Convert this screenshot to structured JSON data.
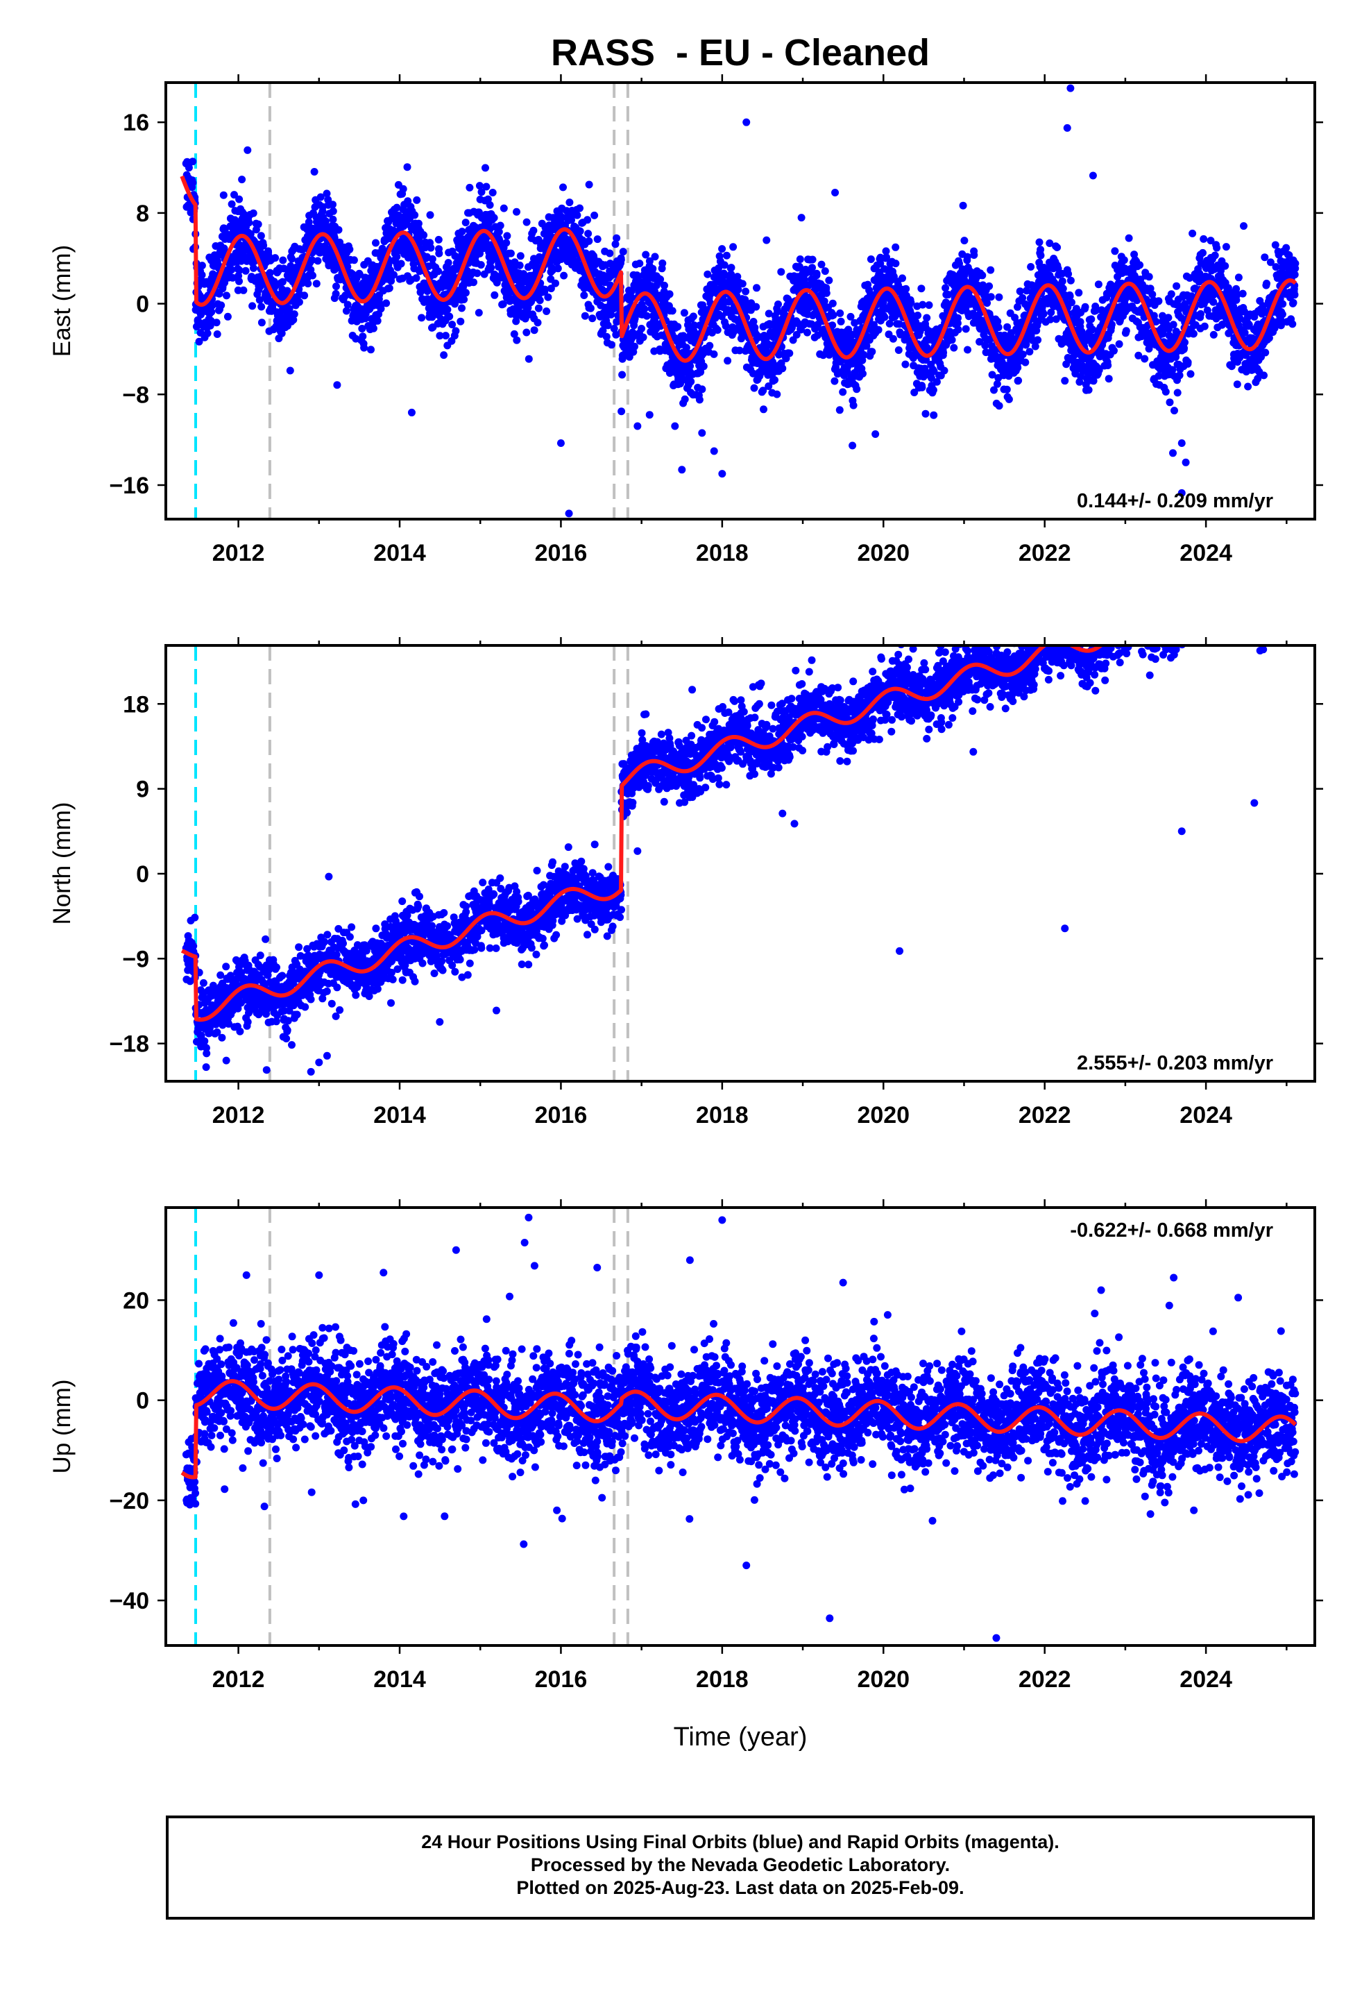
{
  "chart_data": {
    "title": "RASS  - EU - Cleaned",
    "type": "scatter",
    "xlabel": "Time (year)",
    "xlim": [
      2011.1,
      2025.35
    ],
    "xticks": [
      2012,
      2014,
      2016,
      2018,
      2020,
      2022,
      2024
    ],
    "colors": {
      "points": "#0000ff",
      "model": "#ff1a1a",
      "equipment_change": "#00e5ff",
      "event": "#c0c0c0"
    },
    "vertical_lines": [
      {
        "x": 2011.47,
        "color": "cyan"
      },
      {
        "x": 2012.39,
        "color": "gray"
      },
      {
        "x": 2016.66,
        "color": "gray"
      },
      {
        "x": 2016.83,
        "color": "gray"
      }
    ],
    "panels": [
      {
        "id": "east",
        "ylabel": "East (mm)",
        "ylim": [
          -19,
          19.5
        ],
        "yticks": [
          -16,
          -8,
          0,
          8,
          16
        ],
        "ytick_labels": [
          "−16",
          "−8",
          "0",
          "8",
          "16"
        ],
        "rate": "0.144+/- 0.209 mm/yr",
        "rate_position": "bottom-right",
        "model": {
          "steps": [
            {
              "x": 2011.47,
              "value": -8.5
            },
            {
              "x": 2016.75,
              "value": -5.8
            }
          ],
          "segments": [
            {
              "x0": 2011.1,
              "base": 11.4
            },
            {
              "x0": 2011.47,
              "base": 2.9
            },
            {
              "x0": 2016.75,
              "base": -2.9
            }
          ],
          "rate": 0.144,
          "annual": 3.0,
          "phase": 1.3
        },
        "points": {
          "count": 4600,
          "scatter": 1.8,
          "early_offset": 2.0
        },
        "outliers": [
          [
            2022.32,
            19.0
          ],
          [
            2022.28,
            15.5
          ],
          [
            2018.3,
            16.0
          ],
          [
            2016.35,
            10.5
          ],
          [
            2022.6,
            11.3
          ],
          [
            2019.4,
            9.8
          ],
          [
            2015.45,
            8.1
          ],
          [
            2018.55,
            5.6
          ],
          [
            2016.1,
            -18.5
          ],
          [
            2016.0,
            -12.3
          ],
          [
            2016.75,
            -9.5
          ],
          [
            2016.95,
            -10.8
          ],
          [
            2017.1,
            -9.8
          ],
          [
            2017.9,
            -13.0
          ],
          [
            2018.0,
            -15.0
          ],
          [
            2017.75,
            -11.4
          ],
          [
            2023.7,
            -12.3
          ],
          [
            2023.75,
            -14.0
          ],
          [
            2023.7,
            -16.7
          ],
          [
            2014.15,
            -9.6
          ],
          [
            2019.9,
            -11.5
          ],
          [
            2022.25,
            -6.8
          ]
        ]
      },
      {
        "id": "north",
        "ylabel": "North (mm)",
        "ylim": [
          -22,
          24.2
        ],
        "yticks": [
          -18,
          -9,
          0,
          9,
          18
        ],
        "ytick_labels": [
          "−18",
          "−9",
          "0",
          "9",
          "18"
        ],
        "rate": "2.555+/- 0.203 mm/yr",
        "rate_position": "bottom-right",
        "model": {
          "steps": [
            {
              "x": 2011.47,
              "value": -6.0
            },
            {
              "x": 2016.75,
              "value": -2.0
            }
          ],
          "segments": [
            {
              "x0": 2011.1,
              "base": -8.0
            },
            {
              "x0": 2011.47,
              "base": -14.6
            },
            {
              "x0": 2016.75,
              "base": -3.6
            }
          ],
          "rate": 2.555,
          "annual": 1.1,
          "phase": 1.0
        },
        "points": {
          "count": 4600,
          "scatter": 1.6,
          "early_offset": 1.5
        },
        "outliers": [
          [
            2022.05,
            21.5
          ],
          [
            2022.25,
            -5.8
          ],
          [
            2023.7,
            4.5
          ],
          [
            2020.2,
            -8.2
          ],
          [
            2024.6,
            7.5
          ],
          [
            2013.0,
            -20.0
          ],
          [
            2012.9,
            -21.0
          ],
          [
            2013.1,
            -19.3
          ],
          [
            2011.85,
            -19.8
          ],
          [
            2015.2,
            -14.5
          ],
          [
            2011.6,
            -20.5
          ],
          [
            2016.95,
            2.4
          ],
          [
            2012.35,
            -20.8
          ]
        ]
      },
      {
        "id": "up",
        "ylabel": "Up (mm)",
        "ylim": [
          -49,
          38.5
        ],
        "yticks": [
          -40,
          -20,
          0,
          20
        ],
        "ytick_labels": [
          "−40",
          "−20",
          "0",
          "20"
        ],
        "rate": "-0.622+/- 0.668 mm/yr",
        "rate_position": "top-right",
        "model": {
          "steps": [
            {
              "x": 2011.47,
              "value": 12.0
            },
            {
              "x": 2016.75,
              "value": -5.0
            }
          ],
          "segments": [
            {
              "x0": 2011.1,
              "base": -12.8
            },
            {
              "x0": 2011.47,
              "base": 1.5
            },
            {
              "x0": 2016.75,
              "base": 2.5
            }
          ],
          "rate": -0.622,
          "annual": 2.6,
          "phase": 2.0
        },
        "points": {
          "count": 4600,
          "scatter": 4.8,
          "early_offset": 0
        },
        "outliers": [
          [
            2015.6,
            36.5
          ],
          [
            2015.55,
            31.5
          ],
          [
            2018.0,
            36.0
          ],
          [
            2017.6,
            28.0
          ],
          [
            2014.7,
            30.0
          ],
          [
            2018.3,
            -33.0
          ],
          [
            2021.4,
            -47.5
          ],
          [
            2015.95,
            -22.0
          ],
          [
            2023.85,
            -22.0
          ],
          [
            2023.6,
            24.5
          ],
          [
            2016.45,
            26.5
          ],
          [
            2013.8,
            25.5
          ],
          [
            2013.0,
            25.0
          ],
          [
            2019.5,
            23.5
          ],
          [
            2022.7,
            22.0
          ],
          [
            2024.4,
            20.5
          ],
          [
            2013.55,
            -20.0
          ],
          [
            2012.1,
            25.0
          ]
        ]
      }
    ]
  },
  "footer": {
    "line1": "24 Hour Positions Using Final Orbits (blue) and Rapid Orbits (magenta).",
    "line2": "Processed by the Nevada Geodetic Laboratory.",
    "line3": "Plotted on 2025-Aug-23. Last data on 2025-Feb-09."
  }
}
